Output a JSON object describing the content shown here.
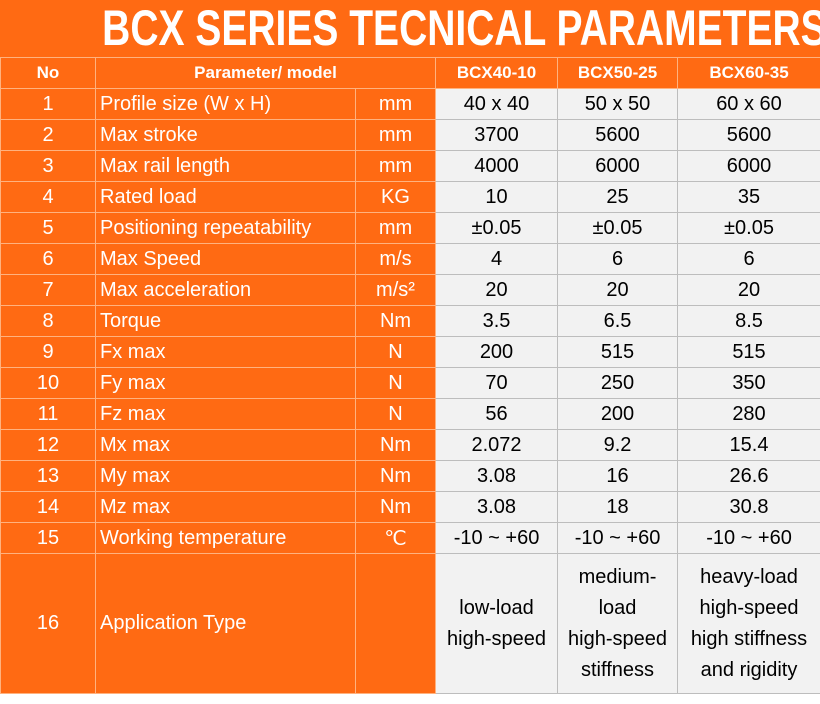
{
  "title": "BCX SERIES TECNICAL PARAMETERS",
  "table": {
    "header": {
      "no": "No",
      "parameter": "Parameter/ model",
      "models": [
        "BCX40-10",
        "BCX50-25",
        "BCX60-35"
      ]
    },
    "rows": [
      [
        "1",
        "Profile size (W x H)",
        "mm",
        "40 x 40",
        "50 x 50",
        "60 x 60"
      ],
      [
        "2",
        "Max stroke",
        "mm",
        "3700",
        "5600",
        "5600"
      ],
      [
        "3",
        "Max rail length",
        "mm",
        "4000",
        "6000",
        "6000"
      ],
      [
        "4",
        "Rated load",
        "KG",
        "10",
        "25",
        "35"
      ],
      [
        "5",
        "Positioning repeatability",
        "mm",
        "±0.05",
        "±0.05",
        "±0.05"
      ],
      [
        "6",
        "Max Speed",
        "m/s",
        "4",
        "6",
        "6"
      ],
      [
        "7",
        "Max acceleration",
        "m/s²",
        "20",
        "20",
        "20"
      ],
      [
        "8",
        "Torque",
        "Nm",
        "3.5",
        "6.5",
        "8.5"
      ],
      [
        "9",
        "Fx max",
        "N",
        "200",
        "515",
        "515"
      ],
      [
        "10",
        "Fy max",
        "N",
        "70",
        "250",
        "350"
      ],
      [
        "11",
        "Fz max",
        "N",
        "56",
        "200",
        "280"
      ],
      [
        "12",
        "Mx max",
        "Nm",
        "2.072",
        "9.2",
        "15.4"
      ],
      [
        "13",
        "My max",
        "Nm",
        "3.08",
        "16",
        "26.6"
      ],
      [
        "14",
        "Mz max",
        "Nm",
        "3.08",
        "18",
        "30.8"
      ],
      [
        "15",
        "Working temperature",
        "℃",
        "-10 ~ +60",
        "-10 ~ +60",
        "-10 ~ +60"
      ],
      [
        "16",
        "Application Type",
        "",
        "low-load\nhigh-speed",
        "medium-\nload\nhigh-speed\nstiffness",
        "heavy-load\nhigh-speed\nhigh stiffness\nand rigidity"
      ]
    ]
  }
}
